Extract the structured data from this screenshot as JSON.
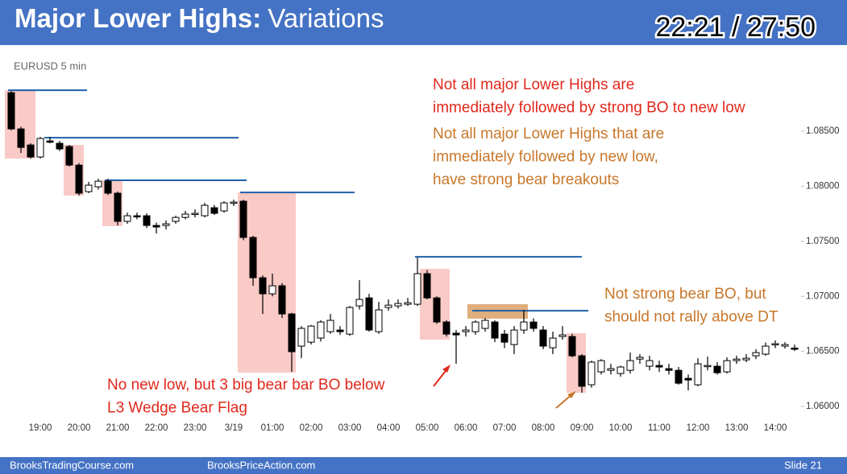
{
  "header": {
    "title_bold": "Major Lower Highs:",
    "title_rest": "Variations",
    "timer": "22:21 / 27:50"
  },
  "footer": {
    "left": "BrooksTradingCourse.com",
    "middle": "BrooksPriceAction.com",
    "right": "Slide  21"
  },
  "chart_data": {
    "type": "candlestick",
    "subtitle": "EURUSD 5 min",
    "bull_color": "#ffffff",
    "bear_color": "#000000",
    "level_color": "#1f5fa8",
    "ylim": [
      1.0589,
      1.0899
    ],
    "yticks": [
      {
        "value": 1.085,
        "label": "1.08500"
      },
      {
        "value": 1.08,
        "label": "1.08000"
      },
      {
        "value": 1.075,
        "label": "1.07500"
      },
      {
        "value": 1.07,
        "label": "1.07000"
      },
      {
        "value": 1.065,
        "label": "1.06500"
      },
      {
        "value": 1.06,
        "label": "1.06000"
      }
    ],
    "categories": [
      null,
      null,
      null,
      "19:00",
      null,
      null,
      null,
      "20:00",
      null,
      null,
      null,
      "21:00",
      null,
      null,
      null,
      "22:00",
      null,
      null,
      null,
      "23:00",
      null,
      null,
      null,
      "3/19",
      null,
      null,
      null,
      "01:00",
      null,
      null,
      null,
      "02:00",
      null,
      null,
      null,
      "03:00",
      null,
      null,
      null,
      "04:00",
      null,
      null,
      null,
      "05:00",
      null,
      null,
      null,
      "06:00",
      null,
      null,
      null,
      "07:00",
      null,
      null,
      null,
      "08:00",
      null,
      null,
      null,
      "09:00",
      null,
      null,
      null,
      "10:00",
      null,
      null,
      null,
      "11:00",
      null,
      null,
      null,
      "12:00",
      null,
      null,
      null,
      "13:00",
      null,
      null,
      null,
      "14:00",
      null,
      null
    ],
    "ohlc": [
      [
        1.0885,
        1.08865,
        1.08507,
        1.08521
      ],
      [
        1.08521,
        1.0854,
        1.08302,
        1.08353
      ],
      [
        1.08375,
        1.0839,
        1.08251,
        1.08266
      ],
      [
        1.08266,
        1.08448,
        1.08251,
        1.08434
      ],
      [
        1.08412,
        1.08448,
        1.0839,
        1.084
      ],
      [
        1.0839,
        1.08412,
        1.0832,
        1.08339
      ],
      [
        1.08361,
        1.08375,
        1.0818,
        1.08192
      ],
      [
        1.08192,
        1.0821,
        1.07915,
        1.07937
      ],
      [
        1.07951,
        1.0804,
        1.07937,
        1.0801
      ],
      [
        1.07995,
        1.08068,
        1.0797,
        1.08046
      ],
      [
        1.08046,
        1.08068,
        1.0792,
        1.07937
      ],
      [
        1.07937,
        1.07951,
        1.07644,
        1.07681
      ],
      [
        1.07681,
        1.0776,
        1.07659,
        1.07732
      ],
      [
        1.07732,
        1.0776,
        1.077,
        1.07725
      ],
      [
        1.07732,
        1.07754,
        1.0762,
        1.07644
      ],
      [
        1.07644,
        1.0767,
        1.07571,
        1.0763
      ],
      [
        1.07644,
        1.0769,
        1.07608,
        1.07659
      ],
      [
        1.07681,
        1.07732,
        1.07659,
        1.07717
      ],
      [
        1.07717,
        1.07776,
        1.077,
        1.07747
      ],
      [
        1.07747,
        1.0779,
        1.07717,
        1.07754
      ],
      [
        1.07732,
        1.07849,
        1.07717,
        1.07827
      ],
      [
        1.07805,
        1.0783,
        1.0774,
        1.07754
      ],
      [
        1.07776,
        1.07864,
        1.0776,
        1.07849
      ],
      [
        1.07849,
        1.07878,
        1.0782,
        1.07856
      ],
      [
        1.07864,
        1.07878,
        1.0751,
        1.07535
      ],
      [
        1.07535,
        1.0755,
        1.07096,
        1.07169
      ],
      [
        1.07169,
        1.0719,
        1.0684,
        1.07023
      ],
      [
        1.07023,
        1.07206,
        1.07,
        1.07096
      ],
      [
        1.07096,
        1.0712,
        1.06804,
        1.0684
      ],
      [
        1.0684,
        1.0685,
        1.06314,
        1.06497
      ],
      [
        1.06548,
        1.0673,
        1.06438,
        1.06709
      ],
      [
        1.06584,
        1.0674,
        1.06562,
        1.0673
      ],
      [
        1.06621,
        1.06782,
        1.0659,
        1.06767
      ],
      [
        1.06679,
        1.0684,
        1.0666,
        1.06782
      ],
      [
        1.06694,
        1.0673,
        1.0665,
        1.06679
      ],
      [
        1.06657,
        1.06913,
        1.0664,
        1.06899
      ],
      [
        1.06913,
        1.07147,
        1.0688,
        1.06972
      ],
      [
        1.06986,
        1.07023,
        1.06679,
        1.06694
      ],
      [
        1.06679,
        1.0695,
        1.0666,
        1.06877
      ],
      [
        1.06899,
        1.06972,
        1.0687,
        1.0692
      ],
      [
        1.06913,
        1.06972,
        1.0689,
        1.06935
      ],
      [
        1.06928,
        1.06986,
        1.06913,
        1.06942
      ],
      [
        1.06928,
        1.07352,
        1.06913,
        1.07206
      ],
      [
        1.07206,
        1.0724,
        1.06972,
        1.06986
      ],
      [
        1.06986,
        1.07,
        1.0675,
        1.06767
      ],
      [
        1.06767,
        1.06782,
        1.06635,
        1.06657
      ],
      [
        1.06665,
        1.06694,
        1.06387,
        1.0665
      ],
      [
        1.06679,
        1.0673,
        1.06635,
        1.06694
      ],
      [
        1.06679,
        1.06782,
        1.0665,
        1.06767
      ],
      [
        1.06709,
        1.06804,
        1.06679,
        1.06782
      ],
      [
        1.06767,
        1.06782,
        1.06584,
        1.06621
      ],
      [
        1.06657,
        1.06694,
        1.0653,
        1.06584
      ],
      [
        1.06562,
        1.0673,
        1.06475,
        1.06694
      ],
      [
        1.06694,
        1.06877,
        1.0666,
        1.06767
      ],
      [
        1.06767,
        1.068,
        1.06679,
        1.06709
      ],
      [
        1.06694,
        1.0673,
        1.0652,
        1.06548
      ],
      [
        1.06533,
        1.06679,
        1.06475,
        1.06621
      ],
      [
        1.06635,
        1.0673,
        1.06606,
        1.0665
      ],
      [
        1.06635,
        1.0666,
        1.06446,
        1.0646
      ],
      [
        1.0646,
        1.06475,
        1.06124,
        1.06183
      ],
      [
        1.06197,
        1.06416,
        1.0617,
        1.06402
      ],
      [
        1.06314,
        1.0643,
        1.0629,
        1.06416
      ],
      [
        1.06328,
        1.06387,
        1.0629,
        1.06343
      ],
      [
        1.06299,
        1.0637,
        1.0627,
        1.06358
      ],
      [
        1.06328,
        1.06489,
        1.06299,
        1.06416
      ],
      [
        1.0643,
        1.06475,
        1.06387,
        1.06446
      ],
      [
        1.06365,
        1.0646,
        1.06328,
        1.06416
      ],
      [
        1.06372,
        1.06416,
        1.06314,
        1.06358
      ],
      [
        1.06343,
        1.06387,
        1.0629,
        1.06328
      ],
      [
        1.06328,
        1.06358,
        1.06197,
        1.06211
      ],
      [
        1.06255,
        1.0629,
        1.06146,
        1.0624
      ],
      [
        1.06197,
        1.06438,
        1.06183,
        1.06387
      ],
      [
        1.06365,
        1.06453,
        1.06328,
        1.06372
      ],
      [
        1.06365,
        1.06402,
        1.0629,
        1.06306
      ],
      [
        1.06314,
        1.06446,
        1.06299,
        1.06416
      ],
      [
        1.06416,
        1.0646,
        1.06387,
        1.0643
      ],
      [
        1.06423,
        1.06475,
        1.06402,
        1.06438
      ],
      [
        1.0646,
        1.0652,
        1.0643,
        1.06489
      ],
      [
        1.06475,
        1.0658,
        1.0646,
        1.06548
      ],
      [
        1.06562,
        1.06599,
        1.0653,
        1.0657
      ],
      [
        1.06548,
        1.06584,
        1.06526,
        1.06562
      ],
      [
        1.0653,
        1.06562,
        1.06504,
        1.06526
      ]
    ],
    "lower_highs": [
      1.08872,
      1.08441,
      1.08054,
      1.07944,
      1.07359,
      1.06869
    ],
    "annotations": [
      {
        "color": "#e0281c",
        "lines": [
          "Not all major Lower Highs are",
          "immediately followed by strong BO to new low"
        ]
      },
      {
        "color": "#c8772a",
        "lines": [
          "Not all major Lower Highs that are",
          "immediately followed by new low,",
          "have strong bear breakouts"
        ]
      },
      {
        "color": "#c8772a",
        "lines": [
          "Not strong bear BO, but",
          "should not rally above DT"
        ]
      },
      {
        "color": "#e0281c",
        "lines": [
          "No new low, but 3 big bear bar BO below",
          "L3 Wedge Bear Flag"
        ]
      }
    ]
  }
}
